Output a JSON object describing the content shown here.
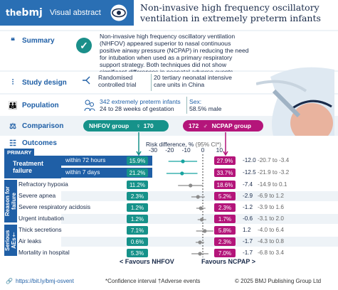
{
  "header": {
    "brand_prefix": "the",
    "brand": "bmj",
    "section": "Visual abstract",
    "title": "Non-invasive high frequency oscillatory ventilation in extremely preterm infants"
  },
  "summary": {
    "label": "Summary",
    "text": "Non-invasive high frequency oscillatory ventilation (NHFOV) appeared superior to nasal continuous positive airway pressure (NCPAP) in reducing the need for intubation when used as a primary respiratory support strategy. Both techniques did not show significant differences in neonatal adverse events"
  },
  "design": {
    "label": "Study design",
    "col1": "Randomised controlled trial",
    "col2": "20 tertiary neonatal intensive care units in China"
  },
  "population": {
    "label": "Population",
    "count": "342 extremely preterm infants",
    "age": "24 to 28 weeks of gestation",
    "sex_label": "Sex:",
    "sex_value": "58.5% male"
  },
  "comparison": {
    "label": "Comparison",
    "nhfov": "NHFOV group",
    "nhfov_n": "170",
    "ncpap": "NCPAP group",
    "ncpap_n": "172"
  },
  "outcomes": {
    "label": "Outcomes",
    "primary": "PRIMARY",
    "rd_header": "Risk difference, % ",
    "ci_note": "(95% CI*)",
    "axis_ticks": [
      "-30",
      "-20",
      "-10",
      "0",
      "10"
    ],
    "groups": {
      "treatment": "Treatment failure",
      "reason": "Reason for failure",
      "serious": "Serious AEs†"
    },
    "rows": [
      {
        "label": "within 72 hours",
        "nhfov": "15.9%",
        "ncpap": "27.9%",
        "rd": "-12.0",
        "ci": "-20.7 to -3.4"
      },
      {
        "label": "within 7 days",
        "nhfov": "21.2%",
        "ncpap": "33.7%",
        "rd": "-12.5",
        "ci": "-21.9 to -3.2"
      },
      {
        "label": "Refractory hypoxia",
        "nhfov": "11.2%",
        "ncpap": "18.6%",
        "rd": "-7.4",
        "ci": "-14.9 to 0.1"
      },
      {
        "label": "Severe apnea",
        "nhfov": "2.3%",
        "ncpap": "5.2%",
        "rd": "-2.9",
        "ci": "-6.9 to 1.2"
      },
      {
        "label": "Severe respiratory acidosis",
        "nhfov": "1.2%",
        "ncpap": "2.3%",
        "rd": "-1.2",
        "ci": "-3.9 to 1.6"
      },
      {
        "label": "Urgent intubation",
        "nhfov": "1.2%",
        "ncpap": "1.7%",
        "rd": "-0.6",
        "ci": "-3.1 to 2.0"
      },
      {
        "label": "Thick secretions",
        "nhfov": "7.1%",
        "ncpap": "5.8%",
        "rd": "1.2",
        "ci": "-4.0 to 6.4"
      },
      {
        "label": "Air leaks",
        "nhfov": "0.6%",
        "ncpap": "2.3%",
        "rd": "-1.7",
        "ci": "-4.3 to 0.8"
      },
      {
        "label": "Mortality in hospital",
        "nhfov": "5.3%",
        "ncpap": "7.0%",
        "rd": "-1.7",
        "ci": "-6.8 to 3.4"
      }
    ],
    "favours_left": "Favours NHFOV",
    "favours_right": "Favours NCPAP"
  },
  "chart_data": {
    "type": "forest",
    "xlabel": "Risk difference, % (95% CI*)",
    "xlim": [
      -30,
      15
    ],
    "ticks": [
      -30,
      -20,
      -10,
      0,
      10
    ],
    "points": [
      {
        "rd": -12.0,
        "lo": -20.7,
        "hi": -3.4,
        "color": "#16a3a0"
      },
      {
        "rd": -12.5,
        "lo": -21.9,
        "hi": -3.2,
        "color": "#16a3a0"
      },
      {
        "rd": -7.4,
        "lo": -14.9,
        "hi": 0.1,
        "color": "#8a8a8a"
      },
      {
        "rd": -2.9,
        "lo": -6.9,
        "hi": 1.2,
        "color": "#8a8a8a"
      },
      {
        "rd": -1.2,
        "lo": -3.9,
        "hi": 1.6,
        "color": "#8a8a8a"
      },
      {
        "rd": -0.6,
        "lo": -3.1,
        "hi": 2.0,
        "color": "#8a8a8a"
      },
      {
        "rd": 1.2,
        "lo": -4.0,
        "hi": 6.4,
        "color": "#8a8a8a"
      },
      {
        "rd": -1.7,
        "lo": -4.3,
        "hi": 0.8,
        "color": "#8a8a8a"
      },
      {
        "rd": -1.7,
        "lo": -6.8,
        "hi": 3.4,
        "color": "#8a8a8a"
      }
    ]
  },
  "footer": {
    "link": "https://bit.ly/bmj-osvent",
    "notes": "*Confidence interval  †Adverse events",
    "copyright": "© 2025 BMJ Publishing Group Ltd"
  }
}
